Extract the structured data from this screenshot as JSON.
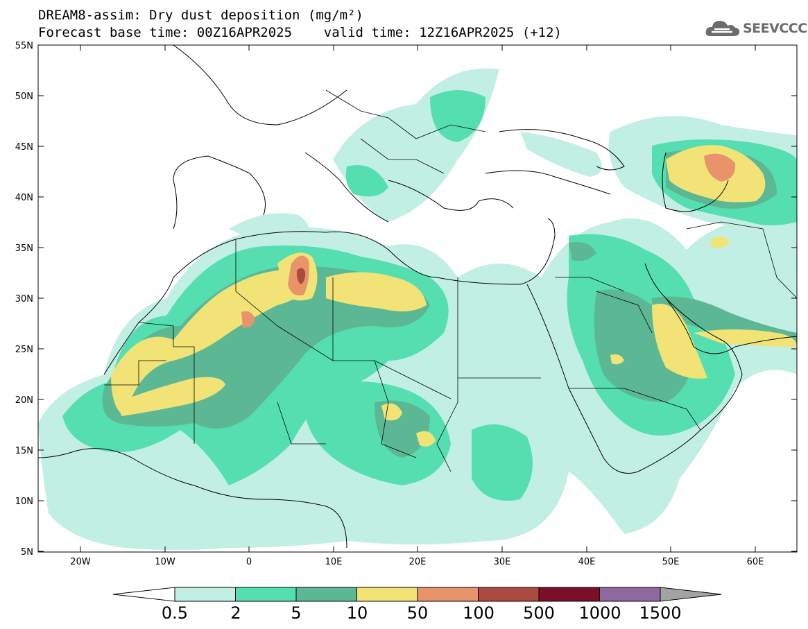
{
  "title": {
    "line1": "DREAM8-assim: Dry dust deposition (mg/m²)",
    "line2": "Forecast base time: 00Z16APR2025    valid time: 12Z16APR2025 (+12)"
  },
  "logo": {
    "text": "SEEVCCC",
    "icon": "cloud-logo-icon"
  },
  "map": {
    "lat_labels": [
      "55N",
      "50N",
      "45N",
      "40N",
      "35N",
      "30N",
      "25N",
      "20N",
      "15N",
      "10N",
      "5N"
    ],
    "lon_labels": [
      "20W",
      "10W",
      "0",
      "10E",
      "20E",
      "30E",
      "40E",
      "50E",
      "60E"
    ]
  },
  "colorbar": {
    "labels": [
      "0.5",
      "2",
      "5",
      "10",
      "50",
      "100",
      "500",
      "1000",
      "1500"
    ],
    "colors": [
      "#c2efe4",
      "#55dfb0",
      "#5cb894",
      "#f2e377",
      "#e8936a",
      "#ab4a3e",
      "#7b0f28",
      "#8f68a2",
      "#a3a3a3"
    ]
  },
  "palette": {
    "ocean": "#ffffff",
    "land": "#ffffff",
    "border": "#000000"
  }
}
